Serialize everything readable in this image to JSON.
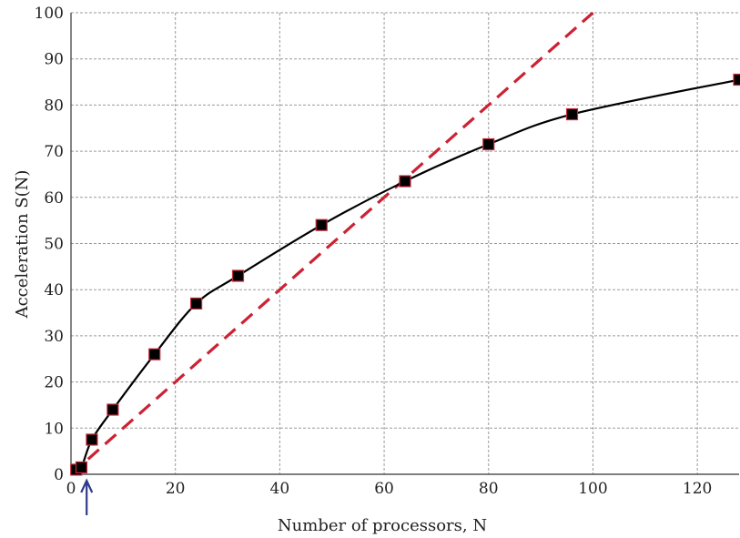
{
  "chart_data": {
    "type": "line",
    "title": "",
    "xlabel": "Number of processors, N",
    "ylabel": "Acceleration S(N)",
    "xlim": [
      0,
      128
    ],
    "ylim": [
      0,
      100
    ],
    "x_ticks": [
      0,
      20,
      40,
      60,
      80,
      100,
      120
    ],
    "y_ticks": [
      0,
      10,
      20,
      30,
      40,
      50,
      60,
      70,
      80,
      90,
      100
    ],
    "grid": true,
    "legend": "none",
    "series": [
      {
        "style": "solid-black-with-square-markers",
        "color": "#000000",
        "marker_edge_color": "#c8283a",
        "points": [
          [
            1,
            1
          ],
          [
            2,
            1.5
          ],
          [
            4,
            7.5
          ],
          [
            8,
            14
          ],
          [
            16,
            26
          ],
          [
            24,
            37
          ],
          [
            32,
            43
          ],
          [
            48,
            54
          ],
          [
            64,
            63.5
          ],
          [
            80,
            71.5
          ],
          [
            96,
            78
          ],
          [
            128,
            85.5
          ]
        ]
      },
      {
        "style": "dashed-red-linear",
        "color": "#cc2233",
        "x": [
          0,
          100
        ],
        "y": [
          0,
          100
        ]
      }
    ],
    "annotation": {
      "type": "arrow",
      "at_x": 3,
      "color": "#2e3a8c"
    }
  }
}
